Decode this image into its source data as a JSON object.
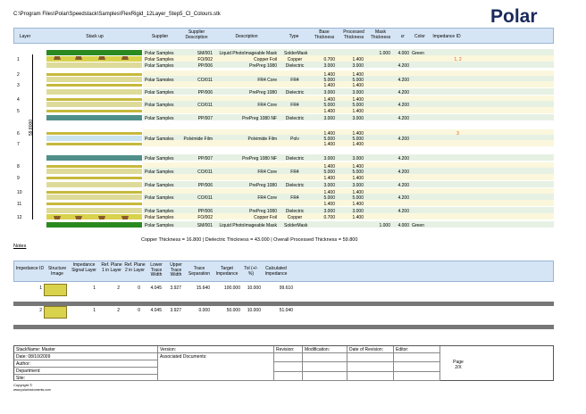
{
  "file_path": "C:\\Program Files\\Polar\\Speedstack\\Samples\\FlexRigid_12Layer_Step5_Cl_Colours.stk",
  "logo_text": "Polar",
  "header": {
    "layer": "Layer",
    "stackup": "Stack up",
    "supplier": "Supplier",
    "supplier_desc": "Supplier Description",
    "description": "Description",
    "type": "Type",
    "base": "Base Thickness",
    "processed": "Processed Thickness",
    "mask": "Mask Thickness",
    "er": "εr",
    "color": "Color",
    "impedance": "Impedance ID"
  },
  "thickness_label": "59.8000",
  "rows": [
    {
      "layer": "",
      "supplier": "Polar Samples",
      "sdesc": "SM/001",
      "desc": "Liquid PhotoImageable Mask",
      "type": "SolderMask",
      "base": "",
      "proc": "",
      "mask": "1.000",
      "er": "4.000",
      "color": "Green",
      "imp": ""
    },
    {
      "layer": "1",
      "supplier": "Polar Samples",
      "sdesc": "FO/002",
      "desc": "Copper Foil",
      "type": "Copper",
      "base": "0.700",
      "proc": "1.400",
      "mask": "",
      "er": "",
      "color": "",
      "imp": "1, 2"
    },
    {
      "layer": "",
      "supplier": "Polar Samples",
      "sdesc": "PP/006",
      "desc": "PrePreg 1080",
      "type": "Dielectric",
      "base": "3.000",
      "proc": "3.000",
      "mask": "",
      "er": "4.200",
      "color": "",
      "imp": ""
    },
    {
      "layer": "2",
      "supplier": "",
      "sdesc": "",
      "desc": "",
      "type": "",
      "base": "1.400",
      "proc": "1.400",
      "mask": "",
      "er": "",
      "color": "",
      "imp": ""
    },
    {
      "layer": "",
      "supplier": "Polar Samples",
      "sdesc": "CO/011",
      "desc": "FR4 Core",
      "type": "FR4",
      "base": "5.000",
      "proc": "5.000",
      "mask": "",
      "er": "4.200",
      "color": "",
      "imp": ""
    },
    {
      "layer": "3",
      "supplier": "",
      "sdesc": "",
      "desc": "",
      "type": "",
      "base": "1.400",
      "proc": "1.400",
      "mask": "",
      "er": "",
      "color": "",
      "imp": ""
    },
    {
      "layer": "",
      "supplier": "Polar Samples",
      "sdesc": "PP/006",
      "desc": "PrePreg 1080",
      "type": "Dielectric",
      "base": "3.000",
      "proc": "3.000",
      "mask": "",
      "er": "4.200",
      "color": "",
      "imp": ""
    },
    {
      "layer": "4",
      "supplier": "",
      "sdesc": "",
      "desc": "",
      "type": "",
      "base": "1.400",
      "proc": "1.400",
      "mask": "",
      "er": "",
      "color": "",
      "imp": ""
    },
    {
      "layer": "",
      "supplier": "Polar Samples",
      "sdesc": "CO/011",
      "desc": "FR4 Core",
      "type": "FR4",
      "base": "5.000",
      "proc": "5.000",
      "mask": "",
      "er": "4.200",
      "color": "",
      "imp": ""
    },
    {
      "layer": "5",
      "supplier": "",
      "sdesc": "",
      "desc": "",
      "type": "",
      "base": "1.400",
      "proc": "1.400",
      "mask": "",
      "er": "",
      "color": "",
      "imp": ""
    },
    {
      "layer": "",
      "supplier": "Polar Samples",
      "sdesc": "PP/007",
      "desc": "PrePreg 1080 NF",
      "type": "Dielectric",
      "base": "3.000",
      "proc": "3.000",
      "mask": "",
      "er": "4.200",
      "color": "",
      "imp": ""
    },
    {
      "layer": "6",
      "supplier": "",
      "sdesc": "",
      "desc": "",
      "type": "",
      "base": "1.400",
      "proc": "1.400",
      "mask": "",
      "er": "",
      "color": "",
      "imp": "3"
    },
    {
      "layer": "",
      "supplier": "Polar Samples",
      "sdesc": "Polyimide Film",
      "desc": "Polyimide Film",
      "type": "Poly",
      "base": "5.000",
      "proc": "5.000",
      "mask": "",
      "er": "4.200",
      "color": "",
      "imp": ""
    },
    {
      "layer": "7",
      "supplier": "",
      "sdesc": "",
      "desc": "",
      "type": "",
      "base": "1.400",
      "proc": "1.400",
      "mask": "",
      "er": "",
      "color": "",
      "imp": ""
    },
    {
      "layer": "",
      "supplier": "Polar Samples",
      "sdesc": "PP/007",
      "desc": "PrePreg 1080 NF",
      "type": "Dielectric",
      "base": "3.000",
      "proc": "3.000",
      "mask": "",
      "er": "4.200",
      "color": "",
      "imp": ""
    },
    {
      "layer": "8",
      "supplier": "",
      "sdesc": "",
      "desc": "",
      "type": "",
      "base": "1.400",
      "proc": "1.400",
      "mask": "",
      "er": "",
      "color": "",
      "imp": ""
    },
    {
      "layer": "",
      "supplier": "Polar Samples",
      "sdesc": "CO/011",
      "desc": "FR4 Core",
      "type": "FR4",
      "base": "5.000",
      "proc": "5.000",
      "mask": "",
      "er": "4.200",
      "color": "",
      "imp": ""
    },
    {
      "layer": "9",
      "supplier": "",
      "sdesc": "",
      "desc": "",
      "type": "",
      "base": "1.400",
      "proc": "1.400",
      "mask": "",
      "er": "",
      "color": "",
      "imp": ""
    },
    {
      "layer": "",
      "supplier": "Polar Samples",
      "sdesc": "PP/006",
      "desc": "PrePreg 1080",
      "type": "Dielectric",
      "base": "3.000",
      "proc": "3.000",
      "mask": "",
      "er": "4.200",
      "color": "",
      "imp": ""
    },
    {
      "layer": "10",
      "supplier": "",
      "sdesc": "",
      "desc": "",
      "type": "",
      "base": "1.400",
      "proc": "1.400",
      "mask": "",
      "er": "",
      "color": "",
      "imp": ""
    },
    {
      "layer": "",
      "supplier": "Polar Samples",
      "sdesc": "CO/011",
      "desc": "FR4 Core",
      "type": "FR4",
      "base": "5.000",
      "proc": "5.000",
      "mask": "",
      "er": "4.200",
      "color": "",
      "imp": ""
    },
    {
      "layer": "11",
      "supplier": "",
      "sdesc": "",
      "desc": "",
      "type": "",
      "base": "1.400",
      "proc": "1.400",
      "mask": "",
      "er": "",
      "color": "",
      "imp": ""
    },
    {
      "layer": "",
      "supplier": "Polar Samples",
      "sdesc": "PP/006",
      "desc": "PrePreg 1080",
      "type": "Dielectric",
      "base": "3.000",
      "proc": "3.000",
      "mask": "",
      "er": "4.200",
      "color": "",
      "imp": ""
    },
    {
      "layer": "12",
      "supplier": "Polar Samples",
      "sdesc": "FO/002",
      "desc": "Copper Foil",
      "type": "Copper",
      "base": "0.700",
      "proc": "1.400",
      "mask": "",
      "er": "",
      "color": "",
      "imp": ""
    },
    {
      "layer": "",
      "supplier": "Polar Samples",
      "sdesc": "SM/001",
      "desc": "Liquid PhotoImageable Mask",
      "type": "SolderMask",
      "base": "",
      "proc": "",
      "mask": "1.000",
      "er": "4.000",
      "color": "Green",
      "imp": ""
    }
  ],
  "summary": "Copper Thickness = 16.800  |  Dielectric Thickness = 43.000  |  Overall Processed Thickness = 59.800",
  "notes_label": "Notes",
  "imp_header": {
    "id": "Impedance ID",
    "structure": "Structure Image",
    "signal": "Impedance Signal Layer",
    "ref1": "Ref. Plane 1 in Layer",
    "ref2": "Ref. Plane 2 in Layer",
    "lower": "Lower Trace Width",
    "upper": "Upper Trace Width",
    "sep": "Trace Separation",
    "target": "Target Impedance",
    "tol": "Tol (+/- %)",
    "calc": "Calculated Impedance"
  },
  "imp_rows": [
    {
      "id": "1",
      "signal": "1",
      "ref1": "2",
      "ref2": "0",
      "lower": "4.045",
      "upper": "3.927",
      "sep": "15.640",
      "target": "100.000",
      "tol": "10.000",
      "calc": "99.610"
    },
    {
      "id": "2",
      "signal": "1",
      "ref1": "2",
      "ref2": "0",
      "lower": "4.045",
      "upper": "3.927",
      "sep": "0.000",
      "target": "50.000",
      "tol": "10.000",
      "calc": "51.040"
    }
  ],
  "footer": {
    "stackname": "StackName: Master",
    "date": "Date: 08/10/2009",
    "author": "Author:",
    "department": "Department:",
    "site": "Site:",
    "version": "Version:",
    "assoc": "Associated Documents:",
    "revision": "Revision:",
    "modification": "Modification:",
    "date_rev": "Date of Revision:",
    "editor": "Editor:",
    "page": "Page",
    "page_num": "2/X"
  },
  "copyright": "Copyright ©",
  "url": "www.polarinstruments.com"
}
